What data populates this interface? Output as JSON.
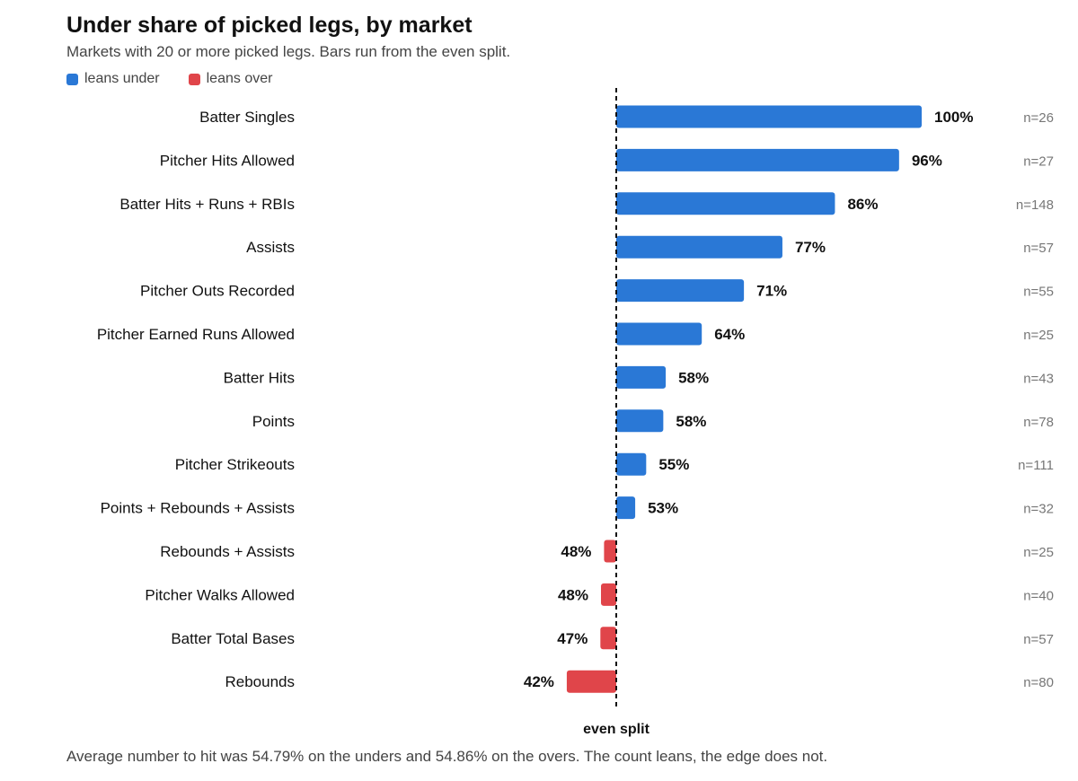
{
  "colors": {
    "under": "#2a78d6",
    "over": "#e0454a"
  },
  "legend": {
    "under": "leans under",
    "over": "leans over"
  },
  "footnote": "Average number to hit was 54.79% on the unders and 54.86% on the overs. The count leans, the edge does not.",
  "chart_data": {
    "type": "bar",
    "orientation": "horizontal",
    "title": "Under share of picked legs, by market",
    "subtitle": "Markets with 20 or more picked legs. Bars run from the even split.",
    "baseline": 50,
    "baseline_label": "even split",
    "legend_placement": "top-left",
    "grid": false,
    "categories": [
      "Batter Singles",
      "Pitcher Hits Allowed",
      "Batter Hits + Runs + RBIs",
      "Assists",
      "Pitcher Outs Recorded",
      "Pitcher Earned Runs Allowed",
      "Batter Hits",
      "Points",
      "Pitcher Strikeouts",
      "Points + Rebounds + Assists",
      "Rebounds + Assists",
      "Pitcher Walks Allowed",
      "Batter Total Bases",
      "Rebounds"
    ],
    "values": [
      100,
      96,
      86,
      77,
      71,
      64,
      58,
      58,
      55,
      53,
      48,
      48,
      47,
      42
    ],
    "value_labels": [
      "100%",
      "96%",
      "86%",
      "77%",
      "71%",
      "64%",
      "58%",
      "58%",
      "55%",
      "53%",
      "48%",
      "48%",
      "47%",
      "42%"
    ],
    "n_labels": [
      "n=26",
      "n=27",
      "n=148",
      "n=57",
      "n=55",
      "n=25",
      "n=43",
      "n=78",
      "n=111",
      "n=32",
      "n=25",
      "n=40",
      "n=57",
      "n=80"
    ],
    "precise_values": [
      100,
      96.3,
      85.8,
      77.2,
      70.9,
      64,
      58.1,
      57.7,
      54.9,
      53.1,
      48,
      47.5,
      47.4,
      41.9
    ]
  }
}
